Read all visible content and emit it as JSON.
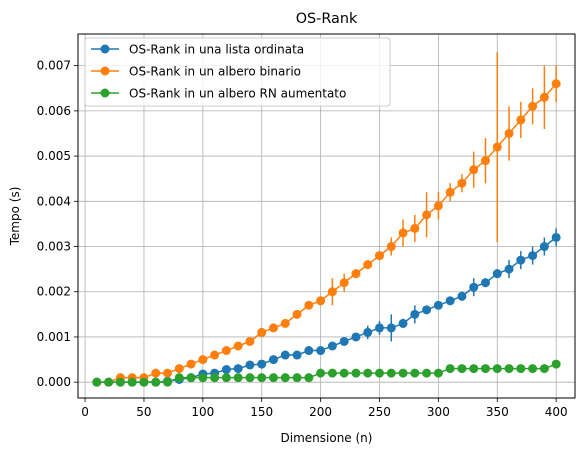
{
  "chart_data": {
    "type": "line",
    "title": "OS-Rank",
    "xlabel": "Dimensione (n)",
    "ylabel": "Tempo (s)",
    "xlim": [
      -6,
      416
    ],
    "ylim": [
      -0.00035,
      0.0077
    ],
    "x_ticks": [
      0,
      50,
      100,
      150,
      200,
      250,
      300,
      350,
      400
    ],
    "y_ticks": [
      0.0,
      0.001,
      0.002,
      0.003,
      0.004,
      0.005,
      0.006,
      0.007
    ],
    "y_tick_labels": [
      "0.000",
      "0.001",
      "0.002",
      "0.003",
      "0.004",
      "0.005",
      "0.006",
      "0.007"
    ],
    "grid": true,
    "legend_position": "upper-left",
    "x": [
      10,
      20,
      30,
      40,
      50,
      60,
      70,
      80,
      90,
      100,
      110,
      120,
      130,
      140,
      150,
      160,
      170,
      180,
      190,
      200,
      210,
      220,
      230,
      240,
      250,
      260,
      270,
      280,
      290,
      300,
      310,
      320,
      330,
      340,
      350,
      360,
      370,
      380,
      390,
      400
    ],
    "series": [
      {
        "name": "OS-Rank in una lista ordinata",
        "color": "#1f77b4",
        "values": [
          0,
          0,
          0,
          0,
          0,
          0,
          2e-05,
          6e-05,
          0.0001,
          0.00018,
          0.0002,
          0.00028,
          0.0003,
          0.00038,
          0.0004,
          0.0005,
          0.0006,
          0.0006,
          0.0007,
          0.0007,
          0.0008,
          0.0009,
          0.001,
          0.0011,
          0.0012,
          0.0012,
          0.0013,
          0.0015,
          0.0016,
          0.0017,
          0.0018,
          0.0019,
          0.0021,
          0.0022,
          0.0024,
          0.0025,
          0.0027,
          0.0028,
          0.003,
          0.0032
        ],
        "errors": [
          0,
          0,
          0,
          0,
          0,
          0,
          0,
          0,
          0,
          0,
          0,
          0,
          0,
          0,
          0,
          0,
          0,
          0,
          0,
          0,
          0,
          0,
          0,
          0.00015,
          0.00015,
          0.0003,
          0.0001,
          0.0002,
          5e-05,
          5e-05,
          5e-05,
          0.0001,
          0.0002,
          0.0001,
          0.0001,
          0.0002,
          0.0002,
          0.0002,
          0.0002,
          0.0002
        ]
      },
      {
        "name": "OS-Rank in un albero binario",
        "color": "#ff7f0e",
        "values": [
          0,
          0,
          0.0001,
          0.0001,
          0.0001,
          0.0002,
          0.0002,
          0.0003,
          0.0004,
          0.0005,
          0.0006,
          0.0007,
          0.0008,
          0.0009,
          0.0011,
          0.0012,
          0.0013,
          0.0015,
          0.0017,
          0.0018,
          0.002,
          0.0022,
          0.0024,
          0.0026,
          0.0028,
          0.003,
          0.0033,
          0.0034,
          0.0037,
          0.0039,
          0.0042,
          0.0044,
          0.0047,
          0.0049,
          0.0052,
          0.0055,
          0.0058,
          0.0061,
          0.0063,
          0.0066
        ],
        "errors": [
          0,
          0,
          0,
          0,
          0,
          0,
          0,
          0,
          0,
          0,
          0,
          0,
          0,
          0,
          0,
          0,
          0,
          0,
          0,
          0.0001,
          0.0003,
          0.0002,
          0.0001,
          0.0001,
          0.0001,
          0.0002,
          0.0003,
          0.0003,
          0.0005,
          0.0003,
          0.0002,
          0.0002,
          0.0004,
          0.0005,
          0.0021,
          0.0006,
          0.0004,
          0.0004,
          0.0007,
          0.0004
        ]
      },
      {
        "name": "OS-Rank in un albero RN aumentato",
        "color": "#2ca02c",
        "values": [
          0,
          0,
          0,
          0,
          0,
          0,
          0,
          0.0001,
          0.0001,
          0.0001,
          0.0001,
          0.0001,
          0.0001,
          0.0001,
          0.0001,
          0.0001,
          0.0001,
          0.0001,
          0.0001,
          0.0002,
          0.0002,
          0.0002,
          0.0002,
          0.0002,
          0.0002,
          0.0002,
          0.0002,
          0.0002,
          0.0002,
          0.0002,
          0.0003,
          0.0003,
          0.0003,
          0.0003,
          0.0003,
          0.0003,
          0.0003,
          0.0003,
          0.0003,
          0.0004
        ],
        "errors": [
          0,
          0,
          0,
          0,
          0,
          0,
          5e-05,
          0,
          0,
          0,
          0,
          0,
          0,
          0,
          0,
          0,
          0,
          0,
          0,
          0,
          0,
          0,
          0,
          0,
          0,
          0,
          0,
          0,
          0,
          0,
          0,
          0,
          0,
          0,
          0,
          0,
          0,
          0,
          0,
          0
        ]
      }
    ]
  }
}
